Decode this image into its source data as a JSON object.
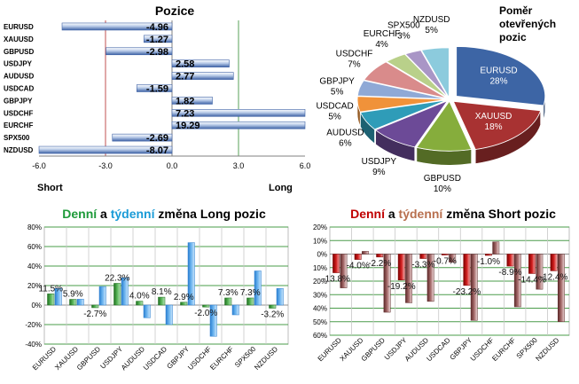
{
  "colors": {
    "green_title": "#1e9a3a",
    "blue_title": "#1a9bd7",
    "red_title": "#c00000",
    "brown_title": "#b8704f",
    "bar_blue": "#5b7fbf",
    "long_line": "#5aa05a",
    "short_line": "#c05050"
  },
  "chart_data": [
    {
      "id": "positions",
      "type": "bar",
      "orientation": "horizontal",
      "title": "Pozice",
      "short_label": "Short",
      "long_label": "Long",
      "categories": [
        "EURUSD",
        "XAUUSD",
        "GBPUSD",
        "USDJPY",
        "AUDUSD",
        "USDCAD",
        "GBPJPY",
        "USDCHF",
        "EURCHF",
        "SPX500",
        "NZDUSD"
      ],
      "values": [
        -4.96,
        -1.27,
        -2.98,
        2.58,
        2.77,
        -1.59,
        1.82,
        7.23,
        19.29,
        -2.69,
        -8.07
      ],
      "value_labels": [
        "-4.96",
        "-1.27",
        "-2.98",
        "2.58",
        "2.77",
        "-1.59",
        "1.82",
        "7.23",
        "19.29",
        "-2.69",
        "-8.07"
      ],
      "xlim": [
        -6,
        6
      ],
      "xticks": [
        "-6.0",
        "-3.0",
        "0.0",
        "3.0",
        "6.0"
      ],
      "ref_lines": [
        -3,
        3
      ]
    },
    {
      "id": "ratio",
      "type": "pie",
      "title": "Poměr otevřených pozic",
      "title_lines": [
        "Poměr",
        "otevřených",
        "pozic"
      ],
      "slices": [
        {
          "name": "EURUSD",
          "pct": "28%",
          "value": 28,
          "color": "#3d65a5"
        },
        {
          "name": "XAUUSD",
          "pct": "18%",
          "value": 18,
          "color": "#a83232"
        },
        {
          "name": "GBPUSD",
          "pct": "10%",
          "value": 10,
          "color": "#86ad3c"
        },
        {
          "name": "USDJPY",
          "pct": "9%",
          "value": 9,
          "color": "#6c4a97"
        },
        {
          "name": "AUDUSD",
          "pct": "6%",
          "value": 6,
          "color": "#2f9cb8"
        },
        {
          "name": "USDCAD",
          "pct": "5%",
          "value": 5,
          "color": "#f0923a"
        },
        {
          "name": "GBPJPY",
          "pct": "5%",
          "value": 5,
          "color": "#8fa9d6"
        },
        {
          "name": "USDCHF",
          "pct": "7%",
          "value": 7,
          "color": "#d98b8b"
        },
        {
          "name": "EURCHF",
          "pct": "4%",
          "value": 4,
          "color": "#b9d08a"
        },
        {
          "name": "SPX500",
          "pct": "3%",
          "value": 3,
          "color": "#a996c6"
        },
        {
          "name": "NZDUSD",
          "pct": "5%",
          "value": 5,
          "color": "#8ccbdd"
        }
      ]
    },
    {
      "id": "long_change",
      "type": "bar",
      "title_parts": [
        {
          "text": "Denní",
          "color": "#1e9a3a"
        },
        {
          "text": " a ",
          "color": "#000000"
        },
        {
          "text": "týdenní",
          "color": "#1a9bd7"
        },
        {
          "text": " změna Long pozic",
          "color": "#000000"
        }
      ],
      "categories": [
        "EURUSD",
        "XAUUSD",
        "GBPUSD",
        "USDJPY",
        "AUDUSD",
        "USDCAD",
        "GBPJPY",
        "USDCHF",
        "EURCHF",
        "SPX500",
        "NZDUSD"
      ],
      "series": [
        {
          "kind": "daily",
          "values": [
            11.5,
            5.9,
            -2.7,
            22.3,
            4.0,
            8.1,
            2.9,
            -2.0,
            7.3,
            7.3,
            -3.2
          ]
        },
        {
          "kind": "weekly",
          "values": [
            17,
            6,
            19,
            28,
            -13,
            -20,
            64,
            -32,
            -10,
            35,
            17
          ]
        }
      ],
      "data_labels": [
        "11.5%",
        "5.9%",
        "-2.7%",
        "22.3%",
        "4.0%",
        "8.1%",
        "2.9%",
        "-2.0%",
        "7.3%",
        "7.3%",
        "-3.2%"
      ],
      "ylim": [
        -40,
        80
      ],
      "yticks": [
        "-40%",
        "-20%",
        "0%",
        "20%",
        "40%",
        "60%",
        "80%"
      ]
    },
    {
      "id": "short_change",
      "type": "bar",
      "title_parts": [
        {
          "text": "Denní",
          "color": "#c00000"
        },
        {
          "text": " a ",
          "color": "#000000"
        },
        {
          "text": "týdenní",
          "color": "#b8704f"
        },
        {
          "text": " změna Short pozic",
          "color": "#000000"
        }
      ],
      "categories": [
        "EURUSD",
        "XAUUSD",
        "GBPUSD",
        "USDJPY",
        "AUDUSD",
        "USDCAD",
        "GBPJPY",
        "USDCHF",
        "EURCHF",
        "SPX500",
        "NZDUSD"
      ],
      "series": [
        {
          "kind": "daily",
          "values": [
            -13.8,
            -4.0,
            -2.2,
            -19.2,
            -3.3,
            -0.7,
            -23.2,
            -1.0,
            -8.9,
            -14.4,
            -12.4
          ]
        },
        {
          "kind": "weekly",
          "values": [
            -25,
            2,
            -43,
            -36,
            -35,
            -6,
            -49,
            9,
            -39,
            -26,
            -50
          ]
        }
      ],
      "data_labels": [
        "-13.8%",
        "-4.0%",
        "-2.2%",
        "-19.2%",
        "-3.3%",
        "-0.7%",
        "-23.2%",
        "-1.0%",
        "-8.9%",
        "-14.4%",
        "-12.4%"
      ],
      "ylim": [
        -60,
        20
      ],
      "yticks": [
        "20%",
        "10%",
        "0%",
        "-10%",
        "-20%",
        "-30%",
        "-40%",
        "-50%",
        "-60%"
      ],
      "ytick_labels": [
        "20%",
        "10%",
        "0%",
        "10%",
        "20%",
        "30%",
        "40%",
        "50%",
        "60%"
      ]
    }
  ]
}
